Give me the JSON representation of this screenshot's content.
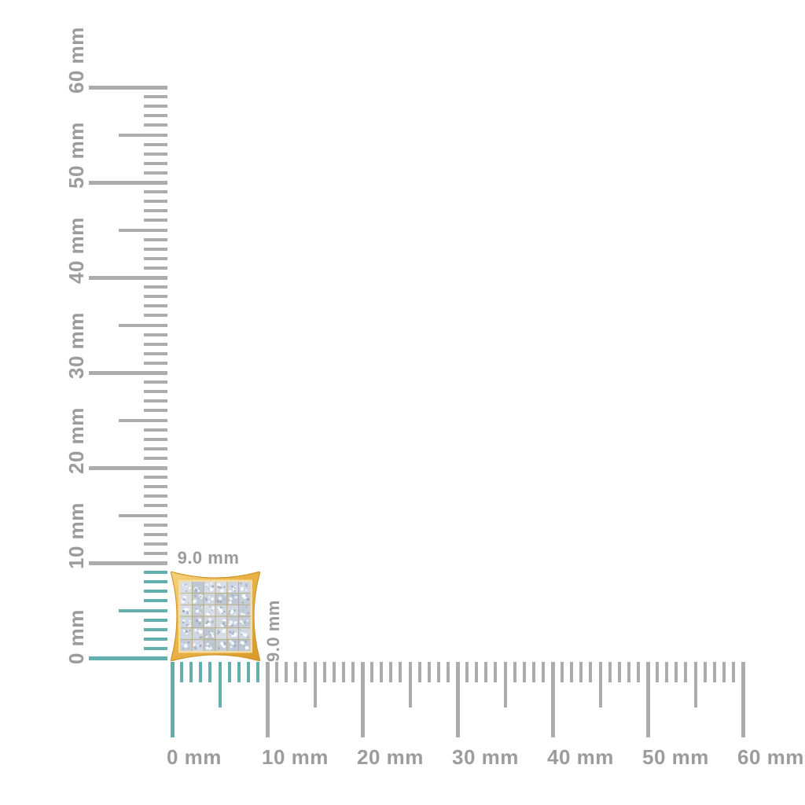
{
  "background": "#ffffff",
  "product": {
    "kind": "square-pave-stud-earring",
    "width_label": "9.0 mm",
    "height_label": "9.0 mm",
    "width_mm": 9.0,
    "height_mm": 9.0,
    "pave_grid": {
      "rows": 6,
      "cols": 6
    },
    "colors": {
      "gold_light": "#f6d27c",
      "gold_mid": "#eab347",
      "gold_dark": "#d9992a",
      "gold_edge": "#cf9226",
      "gold_rim": "#f3dda2",
      "grid_line": "#b99f5e",
      "pave_base_palette": [
        "#cfd7e2",
        "#c4cdd9",
        "#d8dee8",
        "#bec8d5"
      ],
      "pave_dark_fleck": "#8f9bae",
      "pave_mid_fleck": "#aab4c3",
      "sparkle": "#ffffff"
    }
  },
  "rulers": {
    "unit": "mm",
    "min_mm": 0,
    "max_mm": 60,
    "minor_step_mm": 1,
    "medium_step_mm": 5,
    "major_step_mm": 10,
    "highlight_extent_mm": 9,
    "vertical_labels": [
      "0 mm",
      "10 mm",
      "20 mm",
      "30 mm",
      "40 mm",
      "50 mm",
      "60 mm"
    ],
    "horizontal_labels": [
      "0 mm",
      "10 mm",
      "20 mm",
      "30 mm",
      "40 mm",
      "50 mm",
      "60 mm"
    ],
    "colors": {
      "tick_gray": "#acacac",
      "tick_highlight": "#63afae",
      "label_gray": "#9c9c9c"
    }
  }
}
